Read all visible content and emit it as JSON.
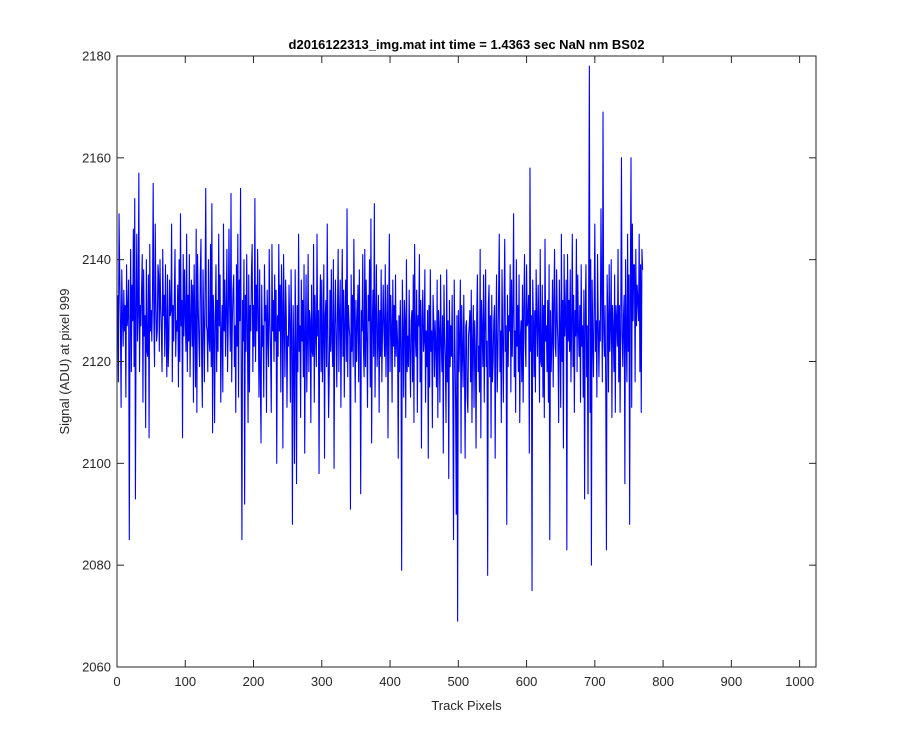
{
  "window": {
    "background": "#ffffff"
  },
  "chart_data": {
    "type": "line",
    "title": "d2016122313_img.mat int time = 1.4363 sec  NaN nm BS02",
    "xlabel": "Track Pixels",
    "ylabel": "Signal (ADU) at pixel 999",
    "xlim": [
      0,
      1024
    ],
    "ylim": [
      2060,
      2180
    ],
    "xticks": [
      0,
      100,
      200,
      300,
      400,
      500,
      600,
      700,
      800,
      900,
      1000
    ],
    "yticks": [
      2060,
      2080,
      2100,
      2120,
      2140,
      2160,
      2180
    ],
    "grid": false,
    "line_color": "#0000ff",
    "series": [
      {
        "x_start": 1,
        "x_step": 1,
        "values": [
          2133,
          2116,
          2149,
          2137,
          2128,
          2111,
          2138,
          2129,
          2123,
          2134,
          2126,
          2131,
          2113,
          2139,
          2127,
          2130,
          2136,
          2085,
          2125,
          2142,
          2118,
          2135,
          2128,
          2146,
          2119,
          2152,
          2093,
          2130,
          2145,
          2124,
          2129,
          2157,
          2118,
          2131,
          2127,
          2134,
          2141,
          2112,
          2138,
          2125,
          2129,
          2107,
          2140,
          2122,
          2121,
          2137,
          2105,
          2143,
          2126,
          2130,
          2124,
          2133,
          2155,
          2128,
          2119,
          2147,
          2132,
          2124,
          2126,
          2139,
          2137,
          2122,
          2140,
          2131,
          2126,
          2118,
          2142,
          2129,
          2133,
          2121,
          2139,
          2127,
          2117,
          2137,
          2119,
          2124,
          2136,
          2129,
          2130,
          2147,
          2116,
          2131,
          2124,
          2133,
          2142,
          2121,
          2128,
          2126,
          2135,
          2115,
          2140,
          2120,
          2149,
          2127,
          2132,
          2105,
          2141,
          2125,
          2138,
          2129,
          2122,
          2145,
          2118,
          2133,
          2124,
          2141,
          2117,
          2128,
          2136,
          2123,
          2135,
          2112,
          2139,
          2127,
          2115,
          2146,
          2110,
          2141,
          2131,
          2124,
          2119,
          2137,
          2144,
          2121,
          2111,
          2138,
          2128,
          2116,
          2134,
          2154,
          2127,
          2126,
          2118,
          2140,
          2124,
          2122,
          2143,
          2119,
          2151,
          2106,
          2133,
          2127,
          2108,
          2129,
          2139,
          2118,
          2132,
          2122,
          2145,
          2127,
          2137,
          2112,
          2125,
          2131,
          2114,
          2147,
          2126,
          2136,
          2121,
          2130,
          2142,
          2118,
          2128,
          2146,
          2131,
          2122,
          2153,
          2116,
          2128,
          2134,
          2137,
          2119,
          2127,
          2110,
          2139,
          2123,
          2145,
          2113,
          2136,
          2128,
          2154,
          2118,
          2085,
          2132,
          2124,
          2140,
          2092,
          2133,
          2122,
          2141,
          2127,
          2108,
          2137,
          2114,
          2131,
          2126,
          2138,
          2143,
          2118,
          2131,
          2123,
          2152,
          2120,
          2135,
          2126,
          2142,
          2129,
          2113,
          2138,
          2116,
          2104,
          2135,
          2123,
          2127,
          2113,
          2139,
          2128,
          2131,
          2110,
          2134,
          2125,
          2119,
          2142,
          2128,
          2122,
          2110,
          2143,
          2126,
          2132,
          2120,
          2137,
          2124,
          2134,
          2100,
          2129,
          2121,
          2143,
          2126,
          2135,
          2114,
          2139,
          2131,
          2103,
          2141,
          2128,
          2117,
          2136,
          2129,
          2111,
          2125,
          2123,
          2135,
          2127,
          2112,
          2138,
          2124,
          2088,
          2131,
          2122,
          2100,
          2138,
          2125,
          2096,
          2131,
          2118,
          2145,
          2122,
          2127,
          2109,
          2136,
          2124,
          2132,
          2117,
          2139,
          2102,
          2126,
          2137,
          2114,
          2124,
          2141,
          2118,
          2130,
          2128,
          2108,
          2135,
          2122,
          2121,
          2143,
          2112,
          2133,
          2126,
          2119,
          2145,
          2125,
          2130,
          2098,
          2128,
          2137,
          2118,
          2136,
          2116,
          2126,
          2139,
          2101,
          2129,
          2132,
          2119,
          2147,
          2124,
          2109,
          2118,
          2134,
          2122,
          2138,
          2124,
          2119,
          2140,
          2099,
          2127,
          2136,
          2125,
          2115,
          2130,
          2142,
          2118,
          2129,
          2136,
          2111,
          2128,
          2142,
          2121,
          2134,
          2113,
          2128,
          2136,
          2120,
          2150,
          2117,
          2131,
          2127,
          2125,
          2091,
          2137,
          2122,
          2133,
          2119,
          2144,
          2128,
          2112,
          2132,
          2120,
          2128,
          2135,
          2116,
          2138,
          2124,
          2094,
          2130,
          2126,
          2141,
          2123,
          2117,
          2142,
          2119,
          2136,
          2124,
          2111,
          2133,
          2128,
          2140,
          2115,
          2148,
          2104,
          2127,
          2134,
          2121,
          2151,
          2113,
          2128,
          2139,
          2119,
          2124,
          2133,
          2110,
          2130,
          2121,
          2138,
          2116,
          2127,
          2135,
          2126,
          2121,
          2139,
          2117,
          2126,
          2135,
          2105,
          2129,
          2145,
          2118,
          2133,
          2127,
          2112,
          2136,
          2123,
          2131,
          2119,
          2137,
          2121,
          2128,
          2124,
          2101,
          2129,
          2118,
          2132,
          2123,
          2079,
          2136,
          2127,
          2113,
          2132,
          2128,
          2109,
          2140,
          2118,
          2125,
          2119,
          2134,
          2122,
          2113,
          2128,
          2130,
          2116,
          2137,
          2108,
          2143,
          2125,
          2121,
          2134,
          2110,
          2129,
          2127,
          2141,
          2116,
          2132,
          2103,
          2128,
          2134,
          2122,
          2124,
          2138,
          2112,
          2126,
          2119,
          2130,
          2101,
          2131,
          2115,
          2138,
          2122,
          2126,
          2107,
          2133,
          2128,
          2117,
          2128,
          2123,
          2115,
          2136,
          2109,
          2130,
          2126,
          2112,
          2137,
          2124,
          2118,
          2129,
          2102,
          2135,
          2125,
          2120,
          2108,
          2138,
          2116,
          2128,
          2097,
          2132,
          2119,
          2127,
          2121,
          2133,
          2113,
          2085,
          2136,
          2124,
          2112,
          2090,
          2129,
          2069,
          2130,
          2118,
          2125,
          2136,
          2102,
          2131,
          2122,
          2115,
          2133,
          2120,
          2101,
          2127,
          2128,
          2113,
          2110,
          2125,
          2127,
          2130,
          2116,
          2134,
          2108,
          2124,
          2131,
          2111,
          2128,
          2122,
          2103,
          2129,
          2137,
          2118,
          2123,
          2114,
          2142,
          2105,
          2132,
          2126,
          2119,
          2137,
          2112,
          2127,
          2138,
          2119,
          2124,
          2078,
          2131,
          2135,
          2117,
          2129,
          2105,
          2133,
          2116,
          2120,
          2128,
          2131,
          2101,
          2125,
          2137,
          2114,
          2121,
          2133,
          2145,
          2118,
          2126,
          2108,
          2138,
          2125,
          2112,
          2130,
          2144,
          2122,
          2127,
          2088,
          2133,
          2119,
          2129,
          2126,
          2139,
          2114,
          2136,
          2121,
          2130,
          2149,
          2117,
          2126,
          2110,
          2140,
          2123,
          2131,
          2118,
          2137,
          2108,
          2125,
          2128,
          2116,
          2135,
          2112,
          2130,
          2141,
          2124,
          2119,
          2139,
          2127,
          2128,
          2133,
          2102,
          2158,
          2122,
          2129,
          2075,
          2136,
          2128,
          2117,
          2130,
          2114,
          2138,
          2128,
          2121,
          2135,
          2126,
          2112,
          2142,
          2120,
          2119,
          2135,
          2113,
          2131,
          2109,
          2144,
          2124,
          2127,
          2118,
          2132,
          2112,
          2139,
          2085,
          2130,
          2118,
          2124,
          2136,
          2115,
          2132,
          2142,
          2123,
          2121,
          2138,
          2128,
          2123,
          2108,
          2136,
          2126,
          2111,
          2145,
          2120,
          2132,
          2103,
          2141,
          2125,
          2129,
          2136,
          2083,
          2141,
          2124,
          2132,
          2122,
          2138,
          2116,
          2127,
          2145,
          2119,
          2133,
          2110,
          2130,
          2125,
          2144,
          2118,
          2137,
          2126,
          2121,
          2131,
          2112,
          2139,
          2123,
          2127,
          2113,
          2134,
          2093,
          2130,
          2139,
          2117,
          2127,
          2094,
          2135,
          2178,
          2110,
          2140,
          2080,
          2136,
          2125,
          2117,
          2131,
          2147,
          2122,
          2128,
          2113,
          2141,
          2127,
          2117,
          2128,
          2124,
          2150,
          2133,
          2116,
          2169,
          2126,
          2121,
          2131,
          2115,
          2083,
          2137,
          2129,
          2114,
          2139,
          2122,
          2127,
          2140,
          2109,
          2131,
          2126,
          2118,
          2137,
          2110,
          2131,
          2128,
          2123,
          2142,
          2116,
          2131,
          2110,
          2128,
          2160,
          2125,
          2119,
          2129,
          2133,
          2096,
          2140,
          2125,
          2116,
          2145,
          2122,
          2137,
          2088,
          2134,
          2160,
          2111,
          2147,
          2128,
          2139,
          2139,
          2116,
          2142,
          2127,
          2135,
          2132,
          2128,
          2145,
          2118,
          2139,
          2110,
          2142,
          2138
        ]
      }
    ]
  }
}
